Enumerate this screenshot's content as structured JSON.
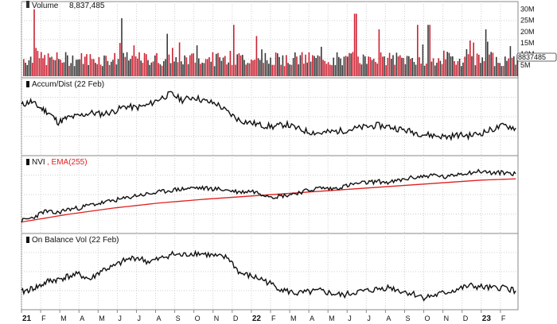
{
  "chart_data": [
    {
      "type": "bar",
      "panel": "volume",
      "label": "Volume",
      "value_label": "8,837,485",
      "last_value_badge": "8837485",
      "y_tick_labels": [
        "30M",
        "25M",
        "20M",
        "15M",
        "10M",
        "5M"
      ],
      "y_ticks": [
        30,
        25,
        20,
        15,
        10,
        5
      ],
      "ylim": [
        0,
        32
      ],
      "unit": "M",
      "colors": {
        "up": "#3a3a3a",
        "down": "#cc2233"
      },
      "values_shape": "daily bars Jan 2021 – Feb 2023; typical 5–12M, spikes to ~30M",
      "spikes": [
        {
          "x": 2021.05,
          "value": 30
        },
        {
          "x": 2021.43,
          "value": 26
        },
        {
          "x": 2021.63,
          "value": 19
        },
        {
          "x": 2021.92,
          "value": 23
        },
        {
          "x": 2022.02,
          "value": 18
        },
        {
          "x": 2022.45,
          "value": 28
        },
        {
          "x": 2022.55,
          "value": 21
        },
        {
          "x": 2022.72,
          "value": 23
        },
        {
          "x": 2022.77,
          "value": 23
        },
        {
          "x": 2022.95,
          "value": 16
        },
        {
          "x": 2023.02,
          "value": 21
        }
      ]
    },
    {
      "type": "line",
      "panel": "accum-dist",
      "label": "Accum/Dist (22 Feb)",
      "series": [
        {
          "color": "#111111",
          "x": [
            2021.0,
            2021.04,
            2021.08,
            2021.12,
            2021.16,
            2021.2,
            2021.25,
            2021.3,
            2021.35,
            2021.4,
            2021.45,
            2021.5,
            2021.55,
            2021.6,
            2021.65,
            2021.7,
            2021.75,
            2021.8,
            2021.85,
            2021.9,
            2021.95,
            2022.0,
            2022.05,
            2022.1,
            2022.15,
            2022.2,
            2022.25,
            2022.3,
            2022.35,
            2022.4,
            2022.45,
            2022.5,
            2022.55,
            2022.6,
            2022.65,
            2022.7,
            2022.75,
            2022.8,
            2022.85,
            2022.9,
            2022.95,
            2023.0,
            2023.05,
            2023.1,
            2023.15
          ],
          "values": [
            72,
            78,
            68,
            60,
            45,
            52,
            55,
            60,
            58,
            62,
            70,
            68,
            72,
            82,
            90,
            80,
            85,
            78,
            74,
            60,
            48,
            44,
            40,
            38,
            42,
            35,
            30,
            28,
            30,
            32,
            35,
            38,
            40,
            38,
            34,
            30,
            26,
            24,
            22,
            25,
            24,
            28,
            34,
            40,
            36
          ]
        }
      ],
      "ylim": [
        0,
        100
      ]
    },
    {
      "type": "line",
      "panel": "nvi",
      "label": "NVI",
      "label_extra": ", EMA(255)",
      "series": [
        {
          "name": "NVI",
          "color": "#111111",
          "x": [
            2021.0,
            2021.05,
            2021.1,
            2021.15,
            2021.2,
            2021.25,
            2021.3,
            2021.35,
            2021.4,
            2021.45,
            2021.5,
            2021.55,
            2021.6,
            2021.65,
            2021.7,
            2021.75,
            2021.8,
            2021.85,
            2021.9,
            2021.95,
            2022.0,
            2022.05,
            2022.1,
            2022.15,
            2022.2,
            2022.25,
            2022.3,
            2022.35,
            2022.4,
            2022.45,
            2022.5,
            2022.55,
            2022.6,
            2022.65,
            2022.7,
            2022.75,
            2022.8,
            2022.85,
            2022.9,
            2022.95,
            2023.0,
            2023.05,
            2023.1,
            2023.15
          ],
          "values": [
            10,
            15,
            25,
            22,
            28,
            30,
            35,
            38,
            42,
            45,
            50,
            52,
            55,
            58,
            60,
            62,
            61,
            60,
            58,
            55,
            57,
            52,
            48,
            50,
            54,
            58,
            62,
            60,
            64,
            68,
            70,
            72,
            70,
            74,
            78,
            80,
            82,
            78,
            84,
            86,
            88,
            85,
            86,
            84
          ]
        },
        {
          "name": "EMA(255)",
          "color": "#e02020",
          "x": [
            2021.0,
            2021.2,
            2021.4,
            2021.6,
            2021.8,
            2022.0,
            2022.2,
            2022.4,
            2022.6,
            2022.8,
            2023.0,
            2023.15
          ],
          "values": [
            8,
            20,
            30,
            38,
            44,
            49,
            54,
            59,
            64,
            69,
            74,
            76
          ]
        }
      ],
      "ylim": [
        0,
        100
      ]
    },
    {
      "type": "line",
      "panel": "obv",
      "label": "On Balance Vol (22 Feb)",
      "series": [
        {
          "color": "#111111",
          "x": [
            2021.0,
            2021.04,
            2021.08,
            2021.12,
            2021.16,
            2021.2,
            2021.25,
            2021.3,
            2021.35,
            2021.4,
            2021.45,
            2021.5,
            2021.55,
            2021.6,
            2021.65,
            2021.7,
            2021.75,
            2021.8,
            2021.85,
            2021.9,
            2021.95,
            2022.0,
            2022.05,
            2022.1,
            2022.15,
            2022.2,
            2022.25,
            2022.3,
            2022.35,
            2022.4,
            2022.45,
            2022.5,
            2022.55,
            2022.6,
            2022.65,
            2022.7,
            2022.75,
            2022.8,
            2022.85,
            2022.9,
            2022.95,
            2023.0,
            2023.05,
            2023.1,
            2023.15
          ],
          "values": [
            20,
            25,
            30,
            38,
            40,
            45,
            48,
            40,
            55,
            60,
            70,
            75,
            68,
            72,
            80,
            78,
            82,
            80,
            76,
            74,
            50,
            45,
            40,
            30,
            22,
            18,
            20,
            22,
            18,
            15,
            20,
            22,
            25,
            28,
            22,
            18,
            12,
            15,
            20,
            25,
            30,
            28,
            26,
            28,
            22
          ]
        }
      ],
      "ylim": [
        0,
        100
      ]
    }
  ],
  "x_axis": {
    "tick_labels": [
      "21",
      "F",
      "M",
      "A",
      "M",
      "J",
      "J",
      "A",
      "S",
      "O",
      "N",
      "D",
      "22",
      "F",
      "M",
      "A",
      "M",
      "J",
      "J",
      "A",
      "S",
      "O",
      "N",
      "D",
      "23",
      "F"
    ],
    "bold_labels": [
      "21",
      "22",
      "23"
    ],
    "xlim": [
      2021.0,
      2023.16
    ]
  }
}
